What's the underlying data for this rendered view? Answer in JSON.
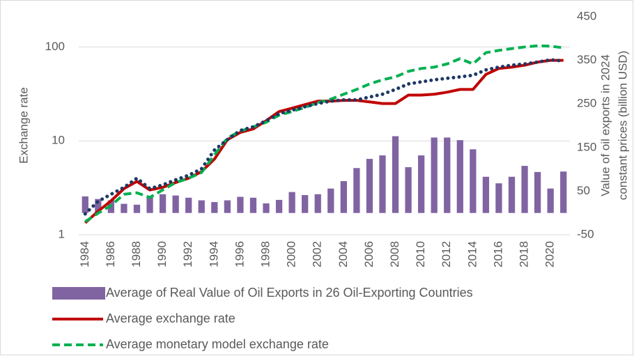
{
  "chart_data": {
    "type": "combo",
    "y_label": "Exchange rate",
    "y2_label": [
      "Value of oil exports in 2024",
      "constant prices (billion USD)"
    ],
    "categories": [
      "1984",
      null,
      "1986",
      null,
      "1988",
      null,
      "1990",
      null,
      "1992",
      null,
      "1994",
      null,
      "1996",
      null,
      "1998",
      null,
      "2000",
      null,
      "2002",
      null,
      "2004",
      null,
      "2006",
      null,
      "2008",
      null,
      "2010",
      null,
      "2012",
      null,
      "2014",
      null,
      "2016",
      null,
      "2018",
      null,
      "2020",
      null
    ],
    "series": [
      {
        "name": "Average of Real Value of Oil Exports in 26 Oil-Exporting Countries",
        "type": "bar",
        "axis": "y2",
        "color": "#8064a2",
        "values": [
          38,
          32,
          29,
          21,
          19,
          37,
          43,
          40,
          35,
          29,
          25,
          29,
          37,
          35,
          22,
          30,
          48,
          41,
          43,
          56,
          73,
          103,
          124,
          132,
          176,
          105,
          132,
          173,
          173,
          167,
          146,
          83,
          68,
          83,
          108,
          94,
          56,
          95
        ]
      },
      {
        "name": "Average exchange rate",
        "type": "line",
        "style": "solid",
        "color": "#c00000",
        "values": [
          1.34,
          1.78,
          2.3,
          3.1,
          3.7,
          3.0,
          3.2,
          3.6,
          4.0,
          4.7,
          6.4,
          10.3,
          12.3,
          13.4,
          16.4,
          20.5,
          22.3,
          24.3,
          26.5,
          26.5,
          27,
          27,
          26,
          25,
          25,
          30.7,
          30.7,
          31.4,
          33,
          35.3,
          35.3,
          51,
          59,
          61,
          64,
          69,
          72,
          72
        ]
      },
      {
        "name": "Average monetary model exchange rate",
        "type": "line",
        "style": "dashed",
        "color": "#00b050",
        "values": [
          1.38,
          1.7,
          2.05,
          2.7,
          2.8,
          2.5,
          3.0,
          3.6,
          4.0,
          4.6,
          7.1,
          10.7,
          12.7,
          14.1,
          15.8,
          18.8,
          20.5,
          22.7,
          25.5,
          27.8,
          31.4,
          35.3,
          40.4,
          44.7,
          48,
          55,
          59,
          61,
          66,
          75,
          66,
          87,
          92,
          96,
          100,
          103,
          102,
          98
        ]
      },
      {
        "type": "line",
        "style": "dotted",
        "color": "#1f3864",
        "values": [
          1.67,
          2.27,
          2.7,
          3.2,
          4.0,
          3.1,
          3.4,
          3.85,
          4.3,
          5.05,
          8.0,
          10.3,
          12.9,
          14.1,
          16.4,
          19.5,
          21.2,
          23.1,
          25,
          26.5,
          27.3,
          27.3,
          29.3,
          31.4,
          35.3,
          40.4,
          42.5,
          44.7,
          46.4,
          48,
          50,
          57,
          61,
          64,
          66,
          69,
          73,
          71
        ]
      }
    ],
    "ylim": [
      1,
      210
    ],
    "yticks": [
      1,
      10,
      100
    ],
    "log_scale": true,
    "grid": true,
    "y2lim": [
      -50,
      450
    ],
    "y2ticks": [
      -50,
      50,
      150,
      250,
      350,
      450
    ],
    "legend": "bottom"
  }
}
